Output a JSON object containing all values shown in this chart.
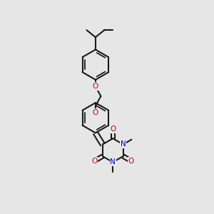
{
  "bg_color": "#e6e6e6",
  "bond_color": "#1a1a1a",
  "O_color": "#cc0000",
  "N_color": "#0000cc",
  "bond_lw": 1.5,
  "dbo": 0.012,
  "figsize": [
    3.0,
    3.0
  ],
  "dpi": 100,
  "xlim": [
    0.1,
    0.9
  ],
  "ylim": [
    0.05,
    0.98
  ]
}
